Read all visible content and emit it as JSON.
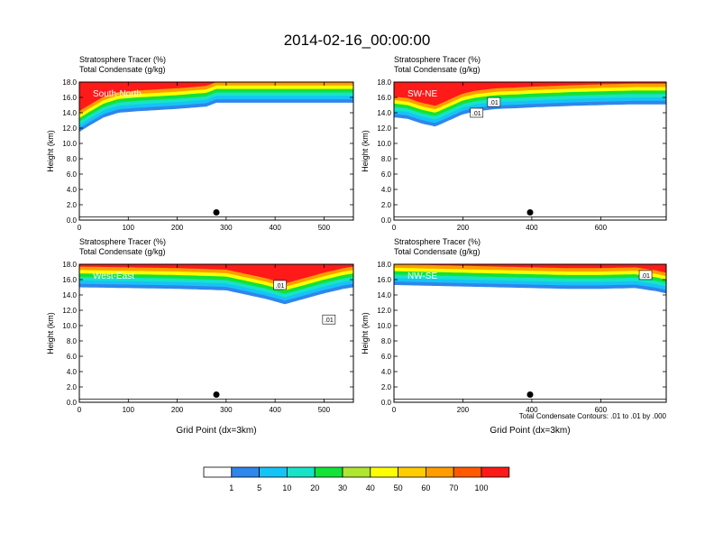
{
  "figure_title": "2014-02-16_00:00:00",
  "footnote": "Total Condensate Contours: .01 to .01 by .000",
  "chart_data": {
    "type": "heatmap",
    "colorbar": {
      "levels": [
        "1",
        "5",
        "10",
        "20",
        "30",
        "40",
        "50",
        "60",
        "70",
        "100"
      ],
      "colors": [
        "#ffffff",
        "#2f86ec",
        "#16c3f6",
        "#17e3c9",
        "#13e238",
        "#aee631",
        "#ffff00",
        "#ffcc00",
        "#ff9d00",
        "#ff5a00",
        "#ff1a1a"
      ]
    },
    "panels": [
      {
        "label": "South-North",
        "subtitle1": "Stratosphere Tracer   (%)",
        "subtitle2": "Total Condensate   (g/kg)",
        "ylabel": "Height (km)",
        "xlabel": "",
        "xlim": [
          0,
          560
        ],
        "ylim": [
          0,
          18
        ],
        "xticks": [
          "0",
          "100",
          "200",
          "300",
          "400",
          "500"
        ],
        "xtick_values": [
          0,
          100,
          200,
          300,
          400,
          500
        ],
        "yticks": [
          "0.0",
          "2.0",
          "4.0",
          "6.0",
          "8.0",
          "10.0",
          "12.0",
          "14.0",
          "16.0",
          "18.0"
        ],
        "marker_x": 280,
        "tracer_base": [
          [
            0,
            11.5
          ],
          [
            20,
            12.3
          ],
          [
            50,
            13.4
          ],
          [
            80,
            14.0
          ],
          [
            120,
            14.2
          ],
          [
            200,
            14.5
          ],
          [
            260,
            14.8
          ],
          [
            280,
            15.3
          ],
          [
            380,
            15.3
          ],
          [
            460,
            15.3
          ],
          [
            560,
            15.3
          ]
        ],
        "contour_labels": []
      },
      {
        "label": "SW-NE",
        "subtitle1": "Stratosphere Tracer   (%)",
        "subtitle2": "Total Condensate   (g/kg)",
        "ylabel": "Height (km)",
        "xlabel": "",
        "xlim": [
          0,
          790
        ],
        "ylim": [
          0,
          18
        ],
        "xticks": [
          "0",
          "200",
          "400",
          "600"
        ],
        "xtick_values": [
          0,
          200,
          400,
          600
        ],
        "yticks": [
          "0.0",
          "2.0",
          "4.0",
          "6.0",
          "8.0",
          "10.0",
          "12.0",
          "14.0",
          "16.0",
          "18.0"
        ],
        "marker_x": 395,
        "tracer_base": [
          [
            0,
            13.4
          ],
          [
            40,
            13.2
          ],
          [
            80,
            12.6
          ],
          [
            120,
            12.2
          ],
          [
            160,
            13.0
          ],
          [
            200,
            13.8
          ],
          [
            240,
            14.2
          ],
          [
            300,
            14.5
          ],
          [
            360,
            14.6
          ],
          [
            400,
            14.7
          ],
          [
            460,
            14.8
          ],
          [
            520,
            14.9
          ],
          [
            600,
            15.0
          ],
          [
            700,
            15.1
          ],
          [
            790,
            15.1
          ]
        ],
        "contour_labels": [
          {
            "text": ".01",
            "x": 240,
            "y": 14.0
          },
          {
            "text": ".01",
            "x": 290,
            "y": 15.4
          }
        ]
      },
      {
        "label": "West-East",
        "subtitle1": "Stratosphere Tracer   (%)",
        "subtitle2": "Total Condensate   (g/kg)",
        "ylabel": "Height (km)",
        "xlabel": "Grid Point (dx=3km)",
        "xlim": [
          0,
          560
        ],
        "ylim": [
          0,
          18
        ],
        "xticks": [
          "0",
          "100",
          "200",
          "300",
          "400",
          "500"
        ],
        "xtick_values": [
          0,
          100,
          200,
          300,
          400,
          500
        ],
        "yticks": [
          "0.0",
          "2.0",
          "4.0",
          "6.0",
          "8.0",
          "10.0",
          "12.0",
          "14.0",
          "16.0",
          "18.0"
        ],
        "marker_x": 280,
        "tracer_base": [
          [
            0,
            15.0
          ],
          [
            100,
            14.9
          ],
          [
            200,
            14.8
          ],
          [
            300,
            14.6
          ],
          [
            380,
            13.5
          ],
          [
            420,
            12.8
          ],
          [
            460,
            13.5
          ],
          [
            500,
            14.2
          ],
          [
            540,
            14.8
          ],
          [
            560,
            15.0
          ]
        ],
        "contour_labels": [
          {
            "text": ".01",
            "x": 410,
            "y": 15.3
          },
          {
            "text": ".01",
            "x": 510,
            "y": 10.8
          }
        ]
      },
      {
        "label": "NW-SE",
        "subtitle1": "Stratosphere Tracer   (%)",
        "subtitle2": "Total Condensate   (g/kg)",
        "ylabel": "Height (km)",
        "xlabel": "Grid Point (dx=3km)",
        "xlim": [
          0,
          790
        ],
        "ylim": [
          0,
          18
        ],
        "xticks": [
          "0",
          "200",
          "400",
          "600"
        ],
        "xtick_values": [
          0,
          200,
          400,
          600
        ],
        "yticks": [
          "0.0",
          "2.0",
          "4.0",
          "6.0",
          "8.0",
          "10.0",
          "12.0",
          "14.0",
          "16.0",
          "18.0"
        ],
        "marker_x": 395,
        "tracer_base": [
          [
            0,
            15.3
          ],
          [
            100,
            15.2
          ],
          [
            200,
            15.1
          ],
          [
            300,
            15.0
          ],
          [
            400,
            14.9
          ],
          [
            500,
            14.8
          ],
          [
            600,
            14.8
          ],
          [
            700,
            14.9
          ],
          [
            760,
            14.5
          ],
          [
            790,
            14.2
          ]
        ],
        "contour_labels": [
          {
            "text": ".01",
            "x": 730,
            "y": 16.6
          }
        ]
      }
    ]
  }
}
